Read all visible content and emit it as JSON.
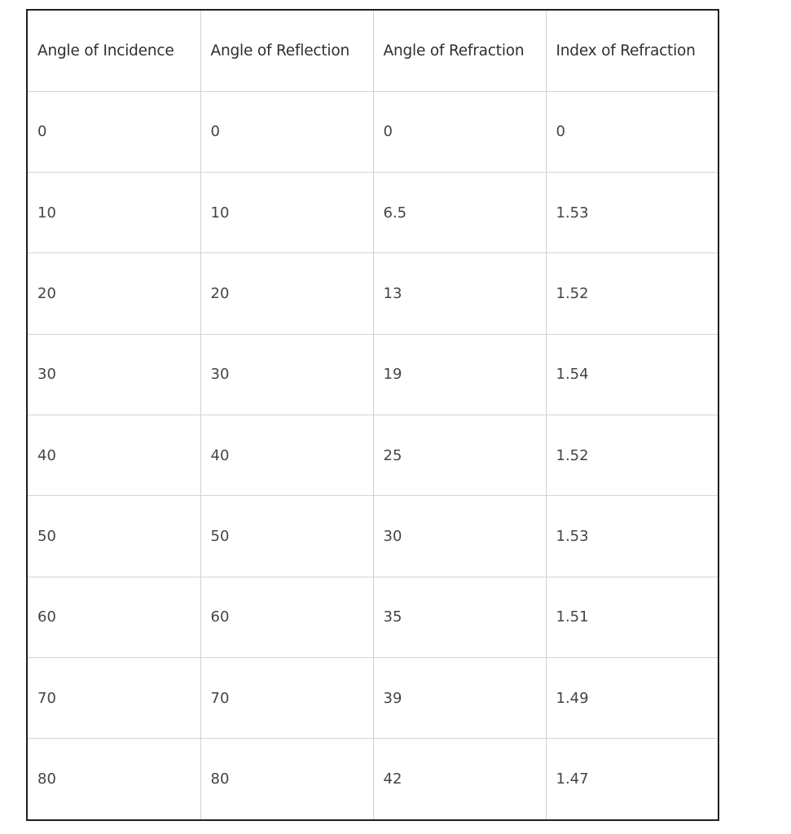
{
  "table": {
    "headers": [
      "Angle of Incidence",
      "Angle of Reflection",
      "Angle of Refraction",
      "Index of Refraction"
    ],
    "rows": [
      [
        "0",
        "0",
        "0",
        "0"
      ],
      [
        "10",
        "10",
        "6.5",
        "1.53"
      ],
      [
        "20",
        "20",
        "13",
        "1.52"
      ],
      [
        "30",
        "30",
        "19",
        "1.54"
      ],
      [
        "40",
        "40",
        "25",
        "1.52"
      ],
      [
        "50",
        "50",
        "30",
        "1.53"
      ],
      [
        "60",
        "60",
        "35",
        "1.51"
      ],
      [
        "70",
        "70",
        "39",
        "1.49"
      ],
      [
        "80",
        "80",
        "42",
        "1.47"
      ]
    ]
  },
  "colors": {
    "outer_border": "#1f1f1f",
    "grid_line": "#cfcfcf",
    "text": "#333333",
    "background": "#ffffff"
  }
}
